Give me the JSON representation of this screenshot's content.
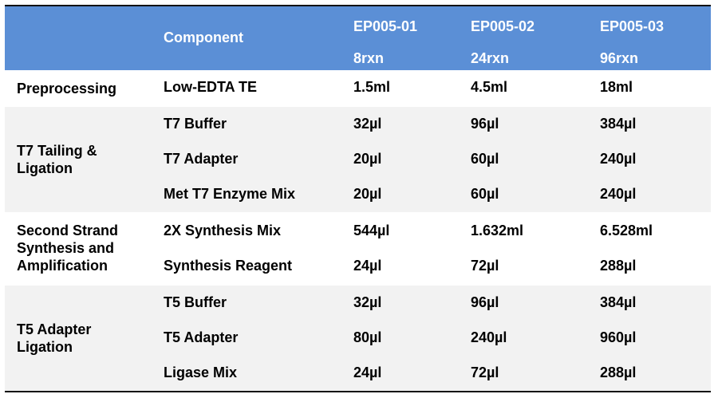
{
  "header": {
    "component_label": "Component",
    "columns": [
      {
        "sku": "EP005-01",
        "size": "8rxn"
      },
      {
        "sku": "EP005-02",
        "size": "24rxn"
      },
      {
        "sku": "EP005-03",
        "size": "96rxn"
      }
    ]
  },
  "groups": [
    {
      "label": "Preprocessing",
      "rows": [
        {
          "component": "Low-EDTA TE",
          "v1": "1.5ml",
          "v2": "4.5ml",
          "v3": "18ml"
        }
      ]
    },
    {
      "label_lines": [
        "T7 Tailing &",
        "Ligation"
      ],
      "rows": [
        {
          "component": "T7 Buffer",
          "v1": "32µl",
          "v2": "96µl",
          "v3": "384µl"
        },
        {
          "component": "T7 Adapter",
          "v1": "20µl",
          "v2": "60µl",
          "v3": "240µl"
        },
        {
          "component": "Met T7 Enzyme Mix",
          "v1": "20µl",
          "v2": "60µl",
          "v3": "240µl"
        }
      ]
    },
    {
      "label_lines": [
        "Second Strand",
        "Synthesis and",
        "Amplification"
      ],
      "rows": [
        {
          "component": "2X Synthesis Mix",
          "v1": "544µl",
          "v2": "1.632ml",
          "v3": "6.528ml"
        },
        {
          "component": "Synthesis Reagent",
          "v1": "24µl",
          "v2": "72µl",
          "v3": "288µl"
        }
      ]
    },
    {
      "label_lines": [
        "T5 Adapter",
        "Ligation"
      ],
      "rows": [
        {
          "component": "T5 Buffer",
          "v1": "32µl",
          "v2": "96µl",
          "v3": "384µl"
        },
        {
          "component": "T5 Adapter",
          "v1": "80µl",
          "v2": "240µl",
          "v3": "960µl"
        },
        {
          "component": "Ligase Mix",
          "v1": "24µl",
          "v2": "72µl",
          "v3": "288µl"
        }
      ]
    }
  ]
}
